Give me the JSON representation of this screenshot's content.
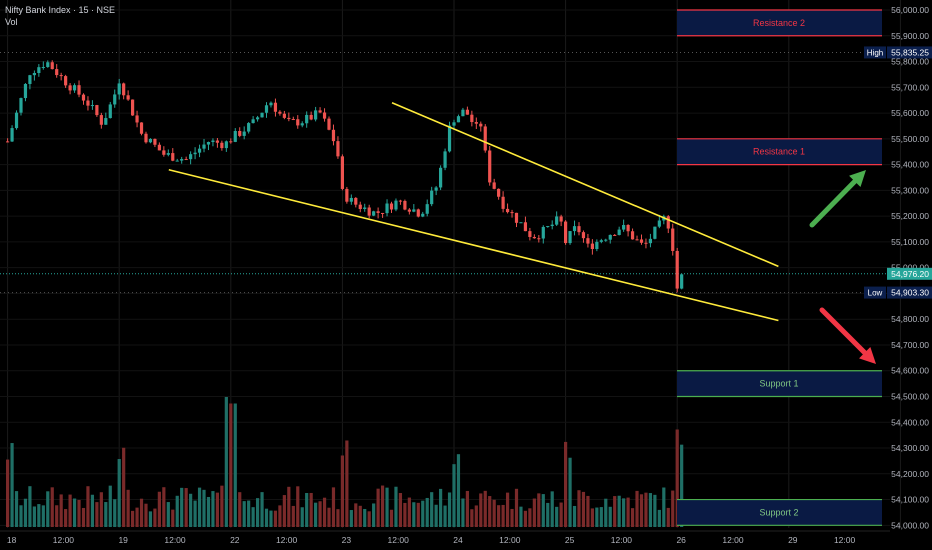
{
  "header": {
    "title": "Nifty Bank Index · 15 · NSE",
    "volume_label": "Vol"
  },
  "price_axis": {
    "ticks": [
      56000,
      55900,
      55800,
      55700,
      55600,
      55500,
      55400,
      55300,
      55200,
      55100,
      55000,
      54900,
      54800,
      54700,
      54600,
      54500,
      54400,
      54300,
      54200,
      54100,
      54000
    ],
    "labels": [
      "56,000.00",
      "55,900.00",
      "55,800.00",
      "55,700.00",
      "55,600.00",
      "55,500.00",
      "55,400.00",
      "55,300.00",
      "55,200.00",
      "55,100.00",
      "55,000.00",
      "54,900.00",
      "54,800.00",
      "54,700.00",
      "54,600.00",
      "54,500.00",
      "54,400.00",
      "54,300.00",
      "54,200.00",
      "54,100.00",
      "54,000.00"
    ],
    "high": {
      "tag": "High",
      "value": 55835.25,
      "label": "55,835.25"
    },
    "low": {
      "tag": "Low",
      "value": 54903.3,
      "label": "54,903.30"
    },
    "last": {
      "value": 54976.2,
      "label": "54,976.20"
    }
  },
  "time_axis": {
    "labels": [
      "18",
      "12:00",
      "19",
      "12:00",
      "22",
      "12:00",
      "23",
      "12:00",
      "24",
      "12:00",
      "25",
      "12:00",
      "26",
      "12:00",
      "29",
      "12:00"
    ]
  },
  "zones": [
    {
      "label": "Resistance 2",
      "top": 56000,
      "bottom": 55900,
      "color": "#f23645",
      "text_color": "#f23645"
    },
    {
      "label": "Resistance 1",
      "top": 55500,
      "bottom": 55400,
      "color": "#f23645",
      "text_color": "#f23645"
    },
    {
      "label": "Support 1",
      "top": 54600,
      "bottom": 54500,
      "color": "#4caf50",
      "text_color": "#81c784"
    },
    {
      "label": "Support 2",
      "top": 54100,
      "bottom": 54000,
      "color": "#4caf50",
      "text_color": "#81c784"
    }
  ],
  "trendlines": [
    {
      "from": [
        2.0,
        55380
      ],
      "to": [
        8.0,
        54795
      ],
      "color": "#ffeb3b"
    },
    {
      "from": [
        4.0,
        55640
      ],
      "to": [
        8.0,
        55005
      ],
      "color": "#ffeb3b"
    }
  ],
  "arrows": [
    {
      "direction": "up",
      "color": "#4caf50"
    },
    {
      "direction": "down",
      "color": "#f23645"
    }
  ],
  "colors": {
    "up": "#26a69a",
    "down": "#ef5350",
    "axis_text": "#b2b5be",
    "label_bg": "#2962ff"
  },
  "chart_data": {
    "type": "candlestick",
    "title": "Nifty Bank Index · 15 · NSE",
    "x_axis": "time (trading sessions, 15-minute bars)",
    "sessions": [
      "18",
      "19",
      "22",
      "23",
      "24",
      "25",
      "26"
    ],
    "y_range": [
      54000,
      56000
    ],
    "high": 55835.25,
    "low": 54903.3,
    "last": 54976.2,
    "approx_close_path": [
      [
        0.0,
        55490
      ],
      [
        0.2,
        55760
      ],
      [
        0.35,
        55800
      ],
      [
        0.5,
        55730
      ],
      [
        0.7,
        55650
      ],
      [
        0.85,
        55560
      ],
      [
        0.95,
        55660
      ],
      [
        1.0,
        55730
      ],
      [
        1.2,
        55520
      ],
      [
        1.4,
        55440
      ],
      [
        1.6,
        55420
      ],
      [
        1.8,
        55490
      ],
      [
        1.95,
        55480
      ],
      [
        2.0,
        55500
      ],
      [
        2.2,
        55560
      ],
      [
        2.35,
        55650
      ],
      [
        2.5,
        55560
      ],
      [
        2.65,
        55570
      ],
      [
        2.8,
        55600
      ],
      [
        2.95,
        55470
      ],
      [
        3.0,
        55290
      ],
      [
        3.1,
        55250
      ],
      [
        3.3,
        55210
      ],
      [
        3.5,
        55260
      ],
      [
        3.7,
        55210
      ],
      [
        3.85,
        55320
      ],
      [
        3.95,
        55530
      ],
      [
        4.0,
        55580
      ],
      [
        4.1,
        55610
      ],
      [
        4.2,
        55540
      ],
      [
        4.25,
        55560
      ],
      [
        4.3,
        55360
      ],
      [
        4.45,
        55240
      ],
      [
        4.6,
        55170
      ],
      [
        4.7,
        55120
      ],
      [
        4.8,
        55140
      ],
      [
        4.95,
        55190
      ],
      [
        5.0,
        55100
      ],
      [
        5.1,
        55160
      ],
      [
        5.2,
        55080
      ],
      [
        5.35,
        55120
      ],
      [
        5.5,
        55160
      ],
      [
        5.6,
        55120
      ],
      [
        5.7,
        55080
      ],
      [
        5.8,
        55140
      ],
      [
        5.9,
        55200
      ],
      [
        5.95,
        55120
      ],
      [
        6.0,
        54920
      ],
      [
        6.05,
        54976
      ]
    ],
    "volume_levels": "relative 0-1 per bar: highs near 22 12:00 (~1.0), 26 open (~0.75), 23 open (~0.55)"
  }
}
